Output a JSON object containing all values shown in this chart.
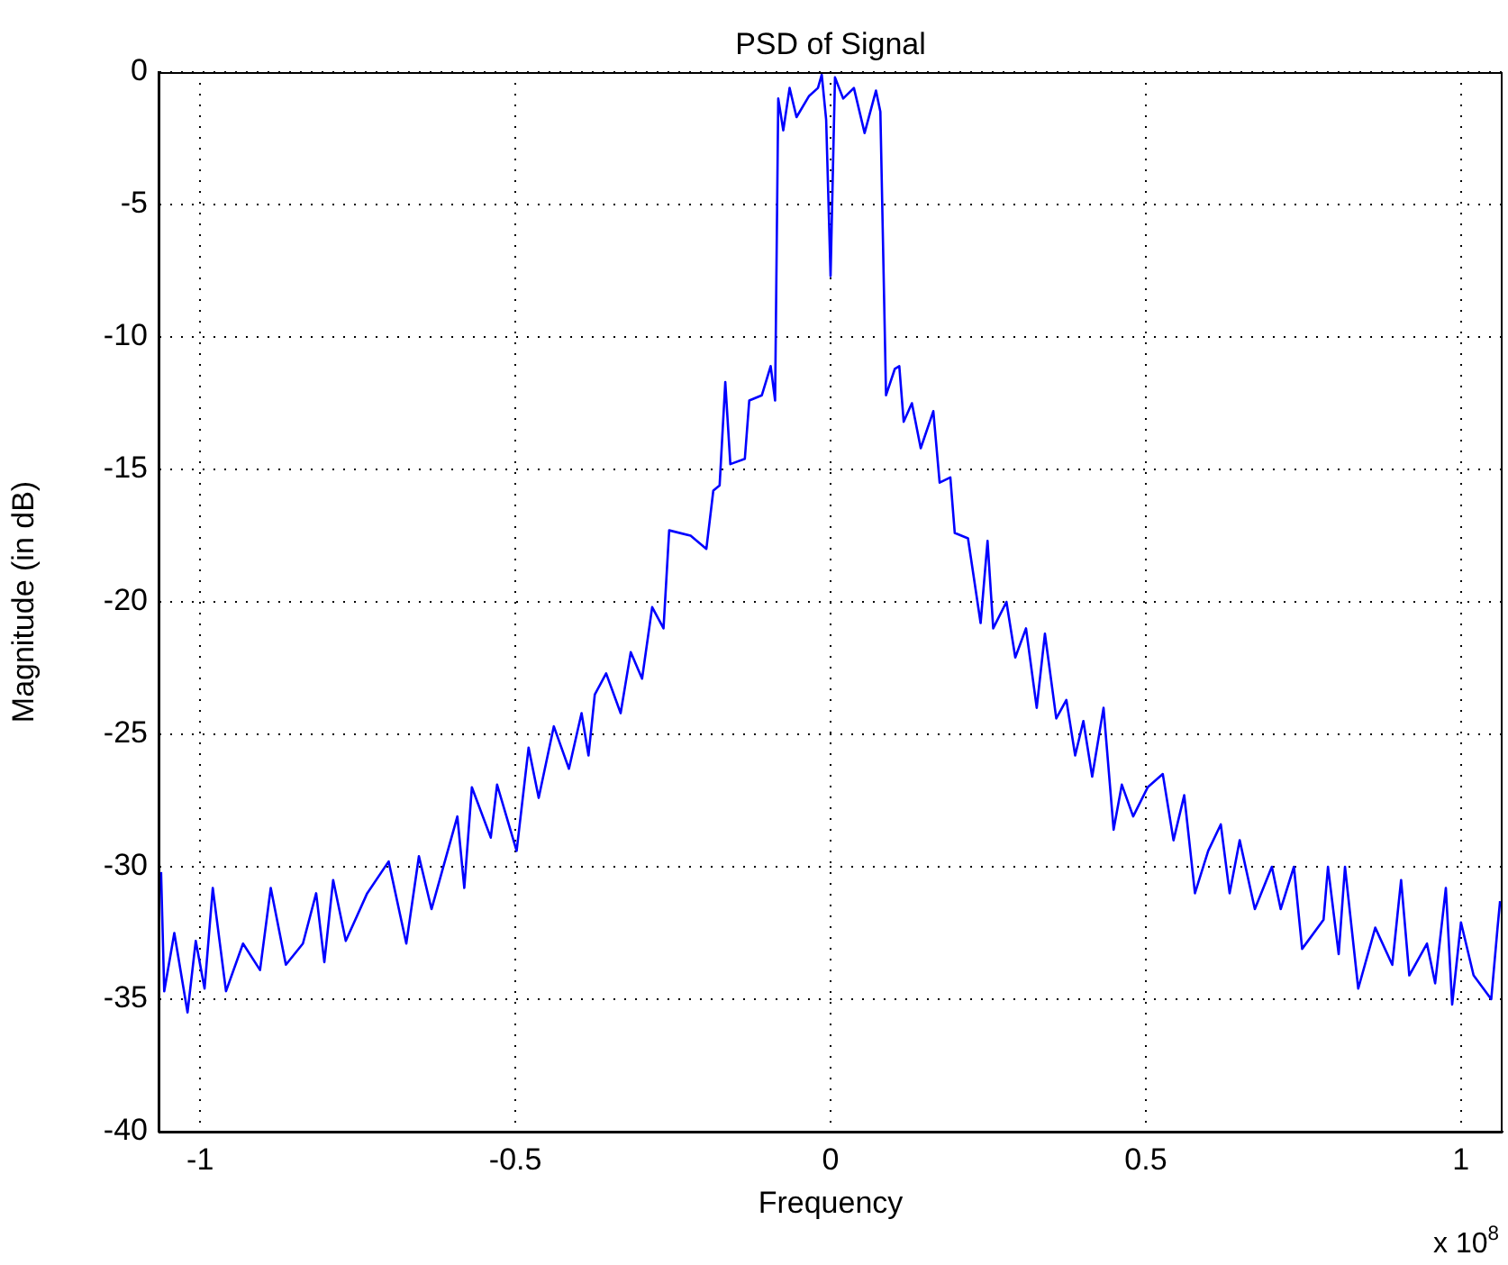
{
  "chart_data": {
    "type": "line",
    "title": "PSD of Signal",
    "xlabel": "Frequency",
    "ylabel": "Magnitude (in dB)",
    "annotations": [
      "x 10$^{8}$"
    ],
    "xlim": [
      -1.066,
      1.066
    ],
    "xticks": [
      -1,
      -0.5,
      0,
      0.5,
      1
    ],
    "ylim": [
      -40,
      0
    ],
    "yticks": [
      -40,
      -35,
      -30,
      -25,
      -20,
      -15,
      -10,
      -5,
      0
    ],
    "grid": true,
    "marker": "none",
    "line_style": "solid",
    "series": [
      {
        "color": "#0000ff",
        "x": [
          -1.062,
          -1.057,
          -1.041,
          -1.02,
          -1.007,
          -0.993,
          -0.98,
          -0.959,
          -0.932,
          -0.905,
          -0.888,
          -0.864,
          -0.837,
          -0.816,
          -0.803,
          -0.789,
          -0.769,
          -0.735,
          -0.701,
          -0.673,
          -0.653,
          -0.633,
          -0.592,
          -0.581,
          -0.569,
          -0.539,
          -0.529,
          -0.498,
          -0.479,
          -0.463,
          -0.439,
          -0.415,
          -0.395,
          -0.384,
          -0.374,
          -0.356,
          -0.333,
          -0.317,
          -0.299,
          -0.283,
          -0.265,
          -0.256,
          -0.222,
          -0.197,
          -0.186,
          -0.176,
          -0.167,
          -0.159,
          -0.136,
          -0.129,
          -0.109,
          -0.095,
          -0.088,
          -0.083,
          -0.075,
          -0.065,
          -0.054,
          -0.034,
          -0.02,
          -0.014,
          -0.007,
          0.0,
          0.007,
          0.02,
          0.037,
          0.054,
          0.072,
          0.079,
          0.088,
          0.102,
          0.109,
          0.116,
          0.129,
          0.143,
          0.163,
          0.173,
          0.19,
          0.197,
          0.218,
          0.238,
          0.249,
          0.258,
          0.279,
          0.293,
          0.31,
          0.327,
          0.34,
          0.358,
          0.374,
          0.388,
          0.401,
          0.415,
          0.433,
          0.449,
          0.462,
          0.48,
          0.503,
          0.527,
          0.544,
          0.561,
          0.578,
          0.599,
          0.619,
          0.633,
          0.649,
          0.673,
          0.7,
          0.714,
          0.735,
          0.748,
          0.782,
          0.789,
          0.806,
          0.816,
          0.837,
          0.864,
          0.891,
          0.905,
          0.918,
          0.946,
          0.959,
          0.976,
          0.986,
          1.0,
          1.02,
          1.048,
          1.058,
          1.062
        ],
        "values": [
          -30.2,
          -34.7,
          -32.5,
          -35.5,
          -32.8,
          -34.6,
          -30.8,
          -34.7,
          -32.9,
          -33.9,
          -30.8,
          -33.7,
          -32.9,
          -31.0,
          -33.6,
          -30.5,
          -32.8,
          -31.0,
          -29.8,
          -32.9,
          -29.6,
          -31.6,
          -28.1,
          -30.8,
          -27.0,
          -28.9,
          -26.9,
          -29.4,
          -25.5,
          -27.4,
          -24.7,
          -26.3,
          -24.2,
          -25.8,
          -23.5,
          -22.7,
          -24.2,
          -21.9,
          -22.9,
          -20.2,
          -21.0,
          -17.3,
          -17.5,
          -18.0,
          -15.8,
          -15.6,
          -11.7,
          -14.8,
          -14.6,
          -12.4,
          -12.2,
          -11.1,
          -12.4,
          -1.0,
          -2.2,
          -0.6,
          -1.7,
          -0.9,
          -0.6,
          -0.1,
          -1.8,
          -7.7,
          -0.2,
          -1.0,
          -0.6,
          -2.3,
          -0.7,
          -1.5,
          -12.2,
          -11.2,
          -11.1,
          -13.2,
          -12.5,
          -14.2,
          -12.8,
          -15.5,
          -15.3,
          -17.4,
          -17.6,
          -20.8,
          -17.7,
          -21.0,
          -20.0,
          -22.1,
          -21.0,
          -24.0,
          -21.2,
          -24.4,
          -23.7,
          -25.8,
          -24.5,
          -26.6,
          -24.0,
          -28.6,
          -26.9,
          -28.1,
          -27.0,
          -26.5,
          -29.0,
          -27.3,
          -31.0,
          -29.4,
          -28.4,
          -31.0,
          -29.0,
          -31.6,
          -30.0,
          -31.6,
          -30.0,
          -33.1,
          -32.0,
          -30.0,
          -33.3,
          -30.0,
          -34.6,
          -32.3,
          -33.7,
          -30.5,
          -34.1,
          -32.9,
          -34.4,
          -30.8,
          -35.2,
          -32.1,
          -34.1,
          -35.0,
          -32.3,
          -31.3
        ]
      }
    ]
  }
}
